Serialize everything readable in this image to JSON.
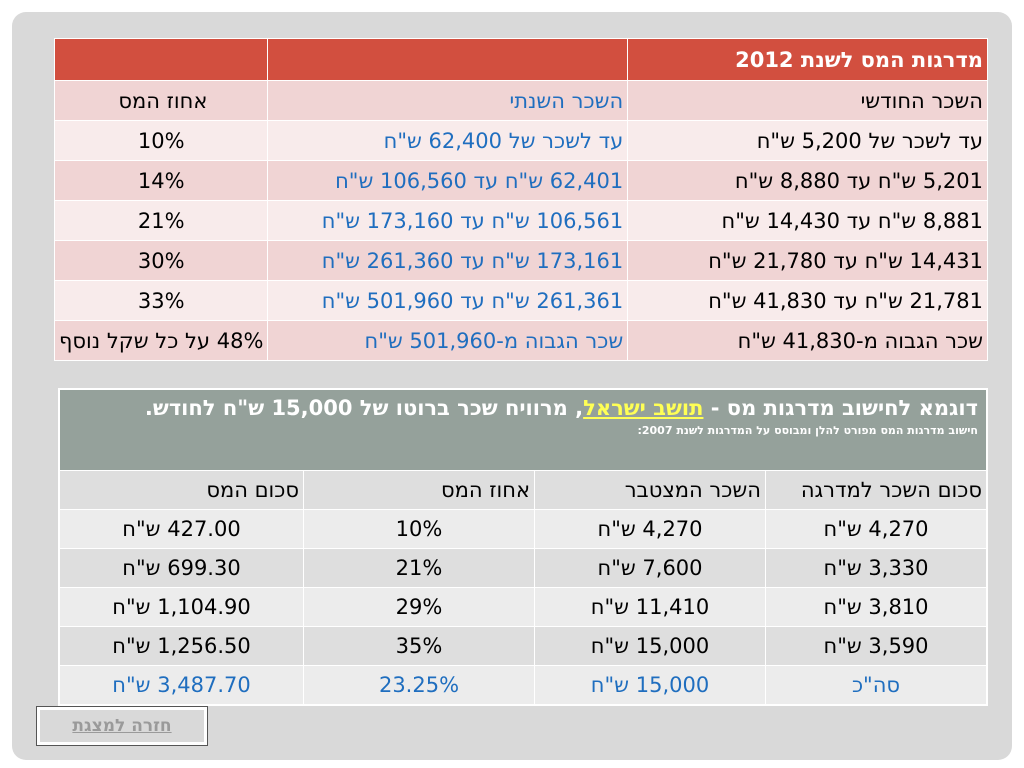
{
  "table1": {
    "title": "מדרגות המס לשנת 2012",
    "headers": [
      "השכר החודשי",
      "השכר השנתי",
      "אחוז המס"
    ],
    "rows": [
      [
        "עד לשכר של 5,200 ש\"ח",
        "עד לשכר של 62,400 ש\"ח",
        "10%"
      ],
      [
        "5,201 ש\"ח עד 8,880 ש\"ח",
        "62,401 ש\"ח עד 106,560 ש\"ח",
        "14%"
      ],
      [
        "8,881 ש\"ח עד 14,430 ש\"ח",
        "106,561 ש\"ח עד 173,160 ש\"ח",
        "21%"
      ],
      [
        "14,431 ש\"ח עד 21,780 ש\"ח",
        "173,161 ש\"ח עד 261,360 ש\"ח",
        "30%"
      ],
      [
        "21,781 ש\"ח עד 41,830 ש\"ח",
        "261,361 ש\"ח עד 501,960 ש\"ח",
        "33%"
      ],
      [
        "שכר הגבוה מ-41,830 ש\"ח",
        "שכר הגבוה מ-501,960 ש\"ח",
        "48% על כל שקל נוסף"
      ]
    ]
  },
  "table2": {
    "title_before": "דוגמא לחישוב מדרגות מס - ",
    "title_link": "תושב ישראל",
    "title_after": ", מרוויח שכר ברוטו של 15,000 ש\"ח לחודש.",
    "subtitle": "חישוב מדרגות המס מפורט להלן ומבוסס על המדרגות לשנת 2007:",
    "headers": [
      "סכום השכר למדרגה",
      "השכר המצטבר",
      "אחוז המס",
      "סכום המס"
    ],
    "rows": [
      [
        "4,270 ש\"ח",
        "4,270 ש\"ח",
        "10%",
        "427.00 ש\"ח"
      ],
      [
        "3,330 ש\"ח",
        "7,600 ש\"ח",
        "21%",
        "699.30 ש\"ח"
      ],
      [
        "3,810 ש\"ח",
        "11,410 ש\"ח",
        "29%",
        "1,104.90 ש\"ח"
      ],
      [
        "3,590 ש\"ח",
        "15,000 ש\"ח",
        "35%",
        "1,256.50 ש\"ח"
      ]
    ],
    "total": [
      "סה\"כ",
      "15,000 ש\"ח",
      "23.25%",
      "3,487.70 ש\"ח"
    ]
  },
  "back_button": {
    "label": "חזרה למצגת"
  },
  "colors": {
    "header_red": "#d24f3f",
    "link_blue": "#1f6ebf",
    "title_gray": "#95a19b",
    "highlight_yellow": "#ffff55"
  }
}
